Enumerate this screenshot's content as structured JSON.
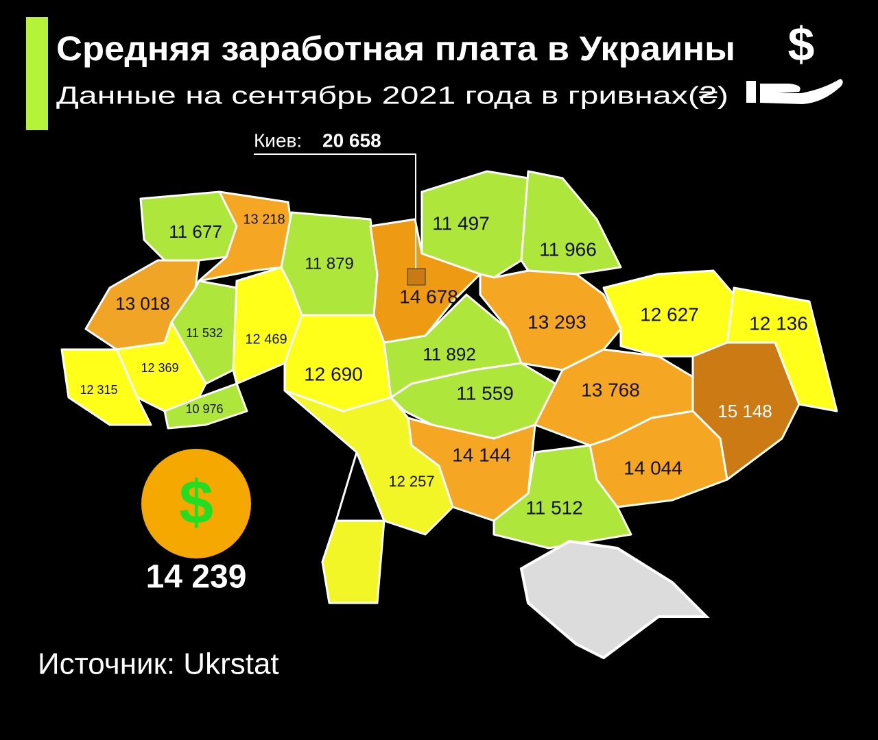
{
  "header": {
    "title": "Средняя заработная плата в Украины",
    "subtitle": "Данные на сентябрь 2021 года в гривнах(₴)",
    "icon_symbol": "$"
  },
  "kyiv": {
    "name": "Киев:",
    "value": "20 658",
    "color": "#c97a12"
  },
  "regions": [
    {
      "label": "11 677",
      "color": "#aee63c"
    },
    {
      "label": "13 218",
      "color": "#f5a623"
    },
    {
      "label": "11 879",
      "color": "#aee63c"
    },
    {
      "label": "14 678",
      "color": "#ee9a12"
    },
    {
      "label": "11 497",
      "color": "#aee63c"
    },
    {
      "label": "11 966",
      "color": "#aee63c"
    },
    {
      "label": "13 018",
      "color": "#f0a526"
    },
    {
      "label": "11 532",
      "color": "#aee63c"
    },
    {
      "label": "12 469",
      "color": "#ffff1a"
    },
    {
      "label": "12 690",
      "color": "#ffff1a"
    },
    {
      "label": "11 892",
      "color": "#aee63c"
    },
    {
      "label": "13 293",
      "color": "#f5a623"
    },
    {
      "label": "12 627",
      "color": "#ffff1a"
    },
    {
      "label": "12 136",
      "color": "#ffff1a"
    },
    {
      "label": "12 369",
      "color": "#ffff1a"
    },
    {
      "label": "12 315",
      "color": "#ffff1a"
    },
    {
      "label": "10 976",
      "color": "#aee63c"
    },
    {
      "label": "11 559",
      "color": "#aee63c"
    },
    {
      "label": "13 768",
      "color": "#f5a623"
    },
    {
      "label": "15 148",
      "color": "#cc7a14"
    },
    {
      "label": "14 144",
      "color": "#f5a623"
    },
    {
      "label": "12 257",
      "color": "#f2f526"
    },
    {
      "label": "14 044",
      "color": "#f5a623"
    },
    {
      "label": "11 512",
      "color": "#aee63c"
    }
  ],
  "average": {
    "symbol": "$",
    "value": "14 239"
  },
  "source": "Источник: Ukrstat"
}
